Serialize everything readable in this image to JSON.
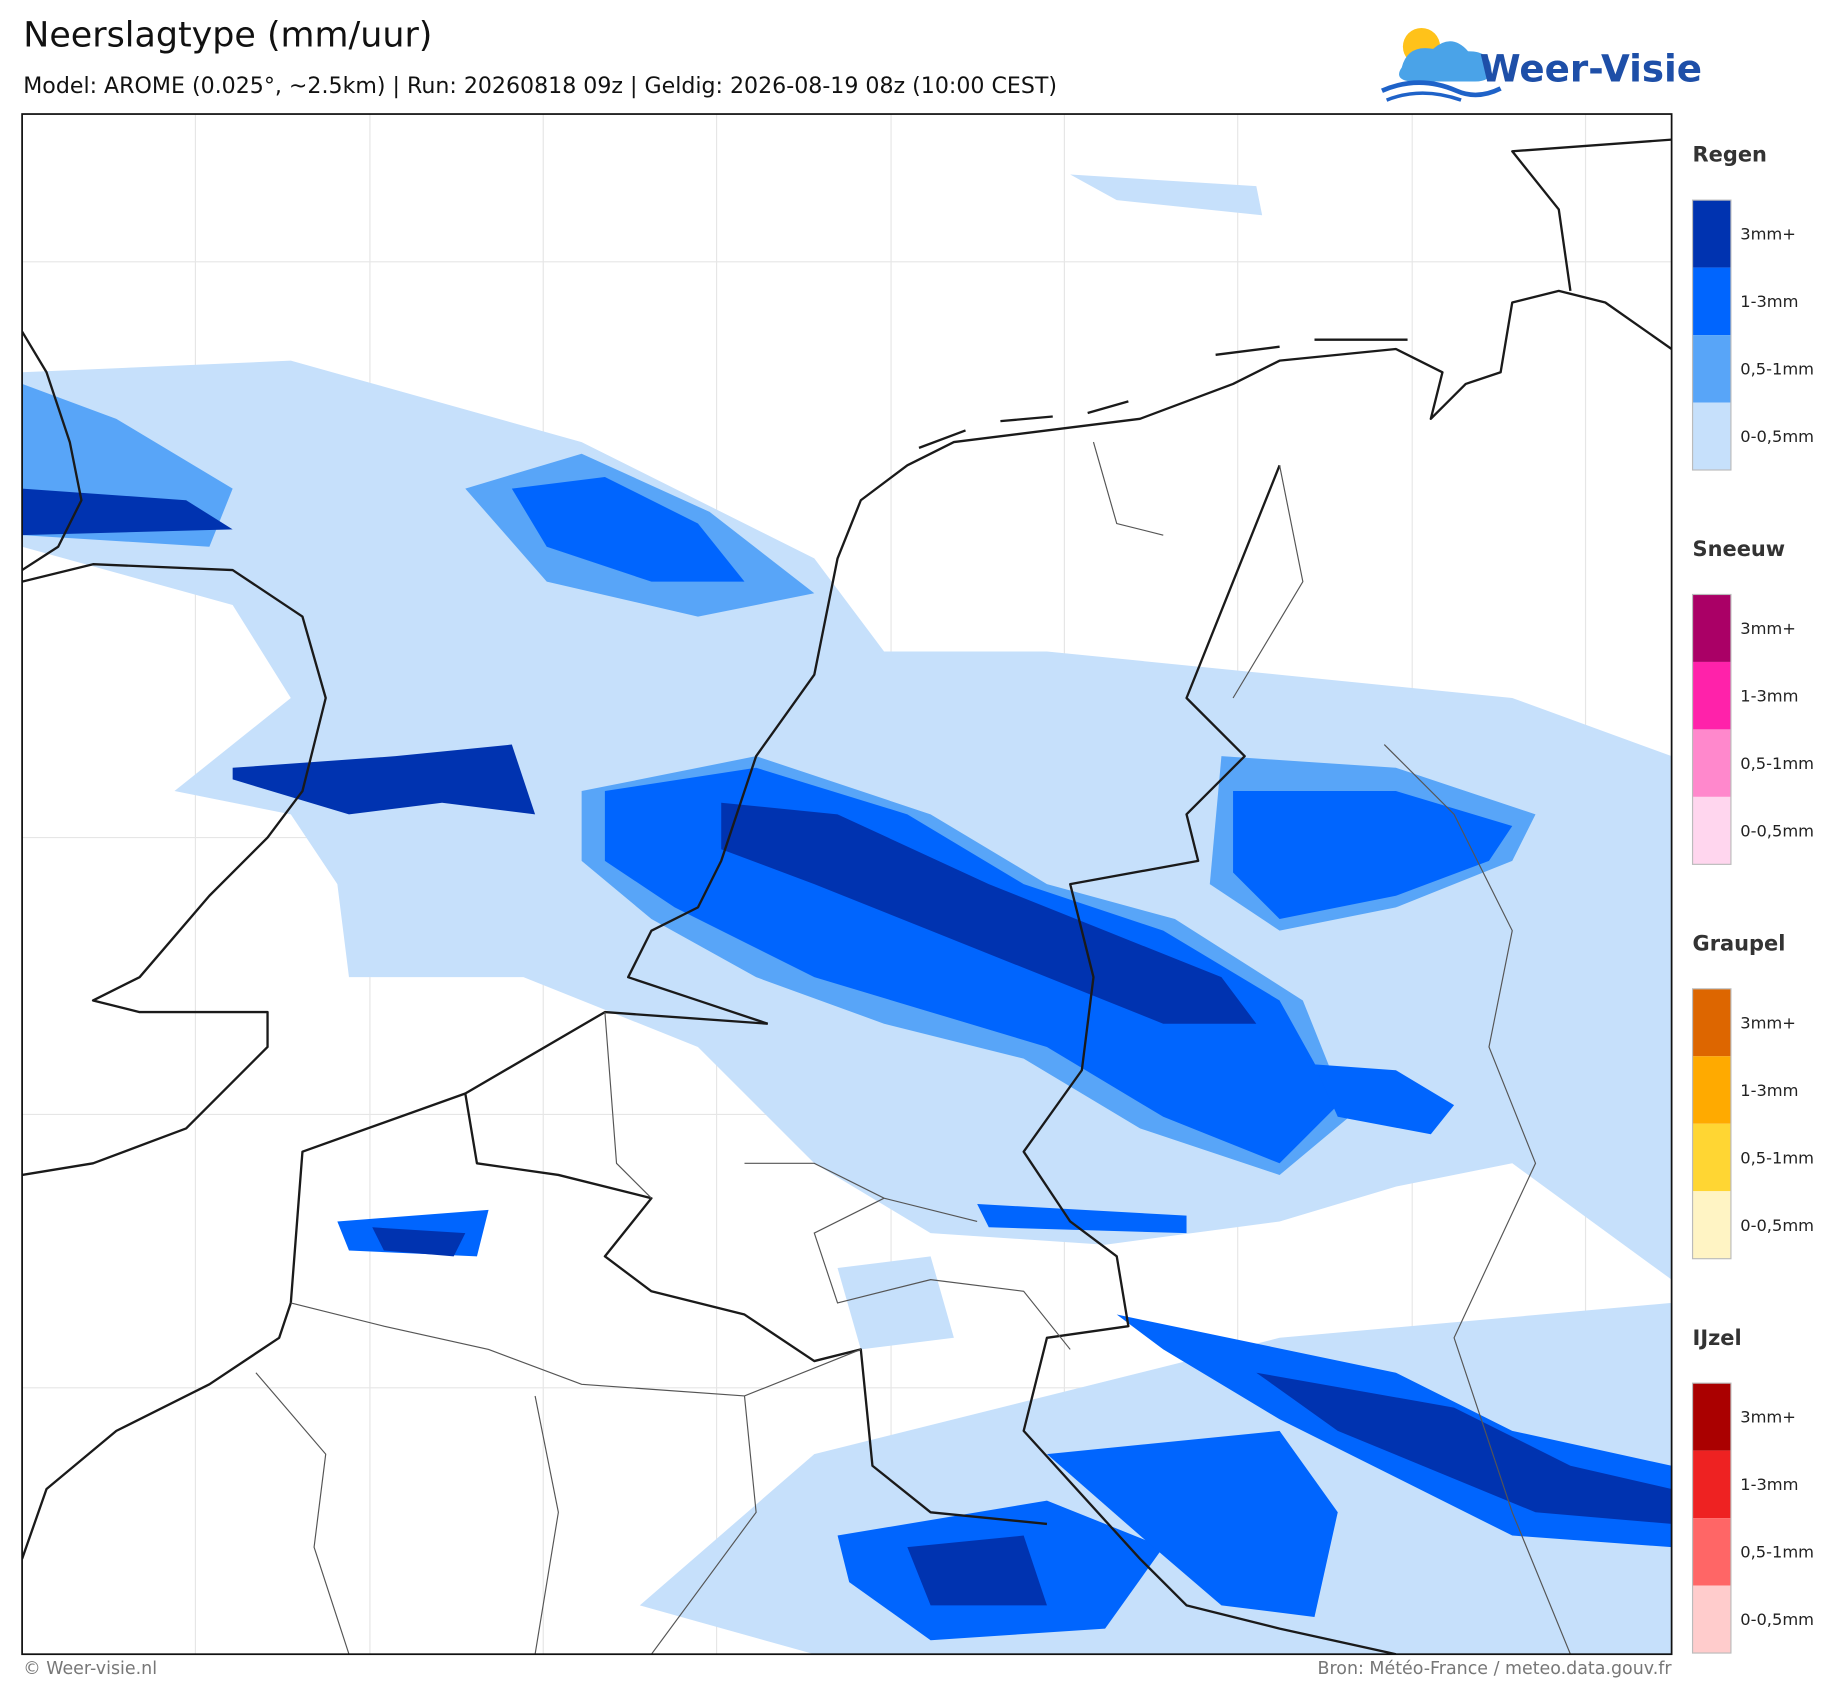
{
  "header": {
    "title": "Neerslagtype (mm/uur)",
    "subtitle": "Model: AROME (0.025°, ~2.5km)  |  Run: 20260818 09z  |  Geldig: 2026-08-19 08z (10:00 CEST)",
    "logo": "Weer-Visie"
  },
  "legend": [
    {
      "title": "Regen",
      "labels": [
        "3mm+",
        "1-3mm",
        "0,5-1mm",
        "0-0,5mm"
      ],
      "colors": [
        "#0033b0",
        "#0065fe",
        "#58a5f8",
        "#c6e0fb"
      ]
    },
    {
      "title": "Sneeuw",
      "labels": [
        "3mm+",
        "1-3mm",
        "0,5-1mm",
        "0-0,5mm"
      ],
      "colors": [
        "#aa0066",
        "#ff22aa",
        "#ff88cc",
        "#ffd6ee"
      ]
    },
    {
      "title": "Graupel",
      "labels": [
        "3mm+",
        "1-3mm",
        "0,5-1mm",
        "0-0,5mm"
      ],
      "colors": [
        "#dd6600",
        "#ffaa00",
        "#ffd633",
        "#fff4c4"
      ]
    },
    {
      "title": "IJzel",
      "labels": [
        "3mm+",
        "1-3mm",
        "0,5-1mm",
        "0-0,5mm"
      ],
      "colors": [
        "#aa0000",
        "#ee2222",
        "#ff6666",
        "#ffcccc"
      ]
    }
  ],
  "footer": {
    "left": "© Weer-visie.nl",
    "right": "Bron: Météo-France / meteo.data.gouv.fr"
  }
}
